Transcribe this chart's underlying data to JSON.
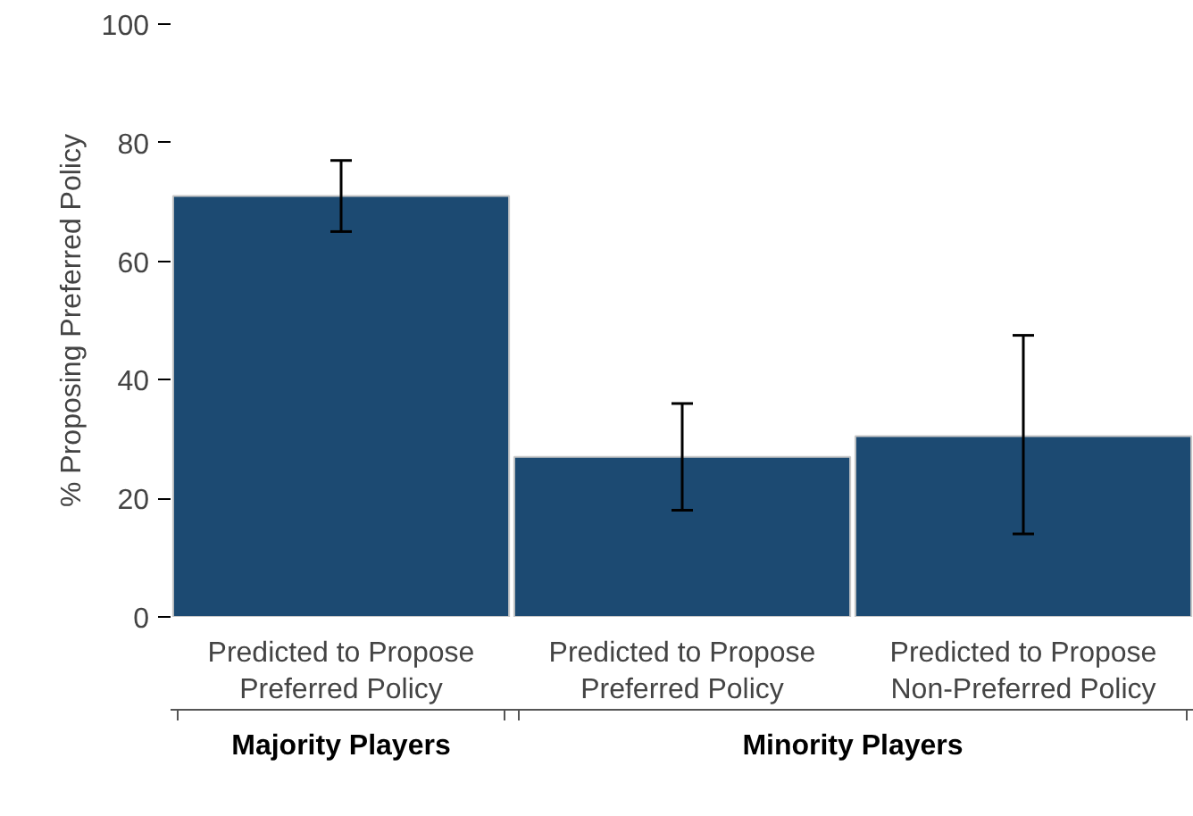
{
  "chart_data": {
    "type": "bar",
    "ylabel": "% Proposing Preferred Policy",
    "categories": [
      "Predicted to Propose\nPreferred Policy",
      "Predicted to Propose\nPreferred Policy",
      "Predicted to Propose\nNon-Preferred Policy"
    ],
    "values": [
      71,
      27,
      30.5
    ],
    "color": "#1c4a72",
    "errors": [
      [
        65,
        77
      ],
      [
        18,
        36
      ],
      [
        14,
        47.5
      ]
    ],
    "ylim": [
      0,
      100
    ],
    "yticks": [
      0,
      20,
      40,
      60,
      80,
      100
    ],
    "grid": false,
    "annotations": [
      "Majority Players",
      "Minority Players"
    ]
  }
}
